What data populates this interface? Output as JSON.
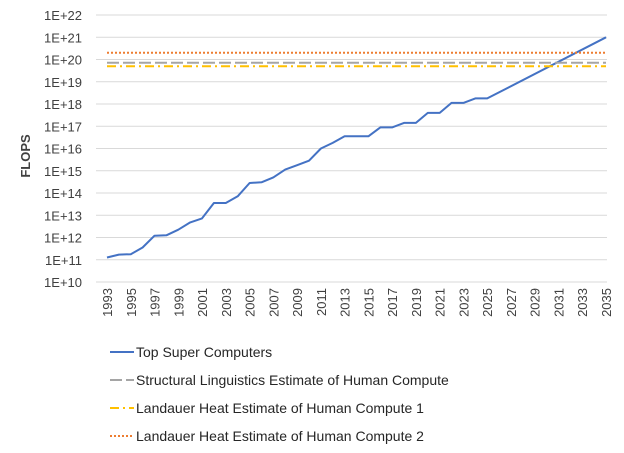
{
  "chart_data": {
    "type": "line",
    "title": "",
    "xlabel": "",
    "ylabel": "FLOPS",
    "y_scale": "log10",
    "ylim_exponent": [
      10,
      22
    ],
    "y_tick_labels": [
      "1E+10",
      "1E+11",
      "1E+12",
      "1E+13",
      "1E+14",
      "1E+15",
      "1E+16",
      "1E+17",
      "1E+18",
      "1E+19",
      "1E+20",
      "1E+21",
      "1E+22"
    ],
    "x_tick_labels": [
      "1993",
      "1995",
      "1997",
      "1999",
      "2001",
      "2003",
      "2005",
      "2007",
      "2009",
      "2011",
      "2013",
      "2015",
      "2017",
      "2019",
      "2021",
      "2023",
      "2025",
      "2027",
      "2029",
      "2031",
      "2033",
      "2035"
    ],
    "xlim": [
      1993,
      2035
    ],
    "grid": true,
    "legend_position": "bottom",
    "series": [
      {
        "name": "Top Super Computers",
        "color": "#4472C4",
        "style": "solid",
        "x": [
          1993,
          1994,
          1995,
          1996,
          1997,
          1998,
          1999,
          2000,
          2001,
          2002,
          2003,
          2004,
          2005,
          2006,
          2007,
          2008,
          2009,
          2010,
          2011,
          2012,
          2013,
          2014,
          2015,
          2016,
          2017,
          2018,
          2019,
          2020,
          2021,
          2022,
          2023,
          2024,
          2025,
          2035
        ],
        "log10_y": [
          11.1,
          11.23,
          11.25,
          11.55,
          12.08,
          12.1,
          12.35,
          12.68,
          12.86,
          13.55,
          13.55,
          13.85,
          14.45,
          14.48,
          14.7,
          15.05,
          15.25,
          15.45,
          16.0,
          16.25,
          16.55,
          16.55,
          16.55,
          16.95,
          16.95,
          17.15,
          17.15,
          17.6,
          17.6,
          18.05,
          18.05,
          18.25,
          18.25,
          21.0
        ]
      },
      {
        "name": "Structural Linguistics Estimate of Human Compute",
        "color": "#A5A5A5",
        "style": "long-dash",
        "x": [
          1993,
          2035
        ],
        "log10_y": [
          19.85,
          19.85
        ]
      },
      {
        "name": "Landauer Heat Estimate of Human Compute 1",
        "color": "#FFC000",
        "style": "dash-dot",
        "x": [
          1993,
          2035
        ],
        "log10_y": [
          19.7,
          19.7
        ]
      },
      {
        "name": "Landauer Heat Estimate of Human Compute 2",
        "color": "#ED7D31",
        "style": "dotted",
        "x": [
          1993,
          2035
        ],
        "log10_y": [
          20.3,
          20.3
        ]
      }
    ]
  }
}
